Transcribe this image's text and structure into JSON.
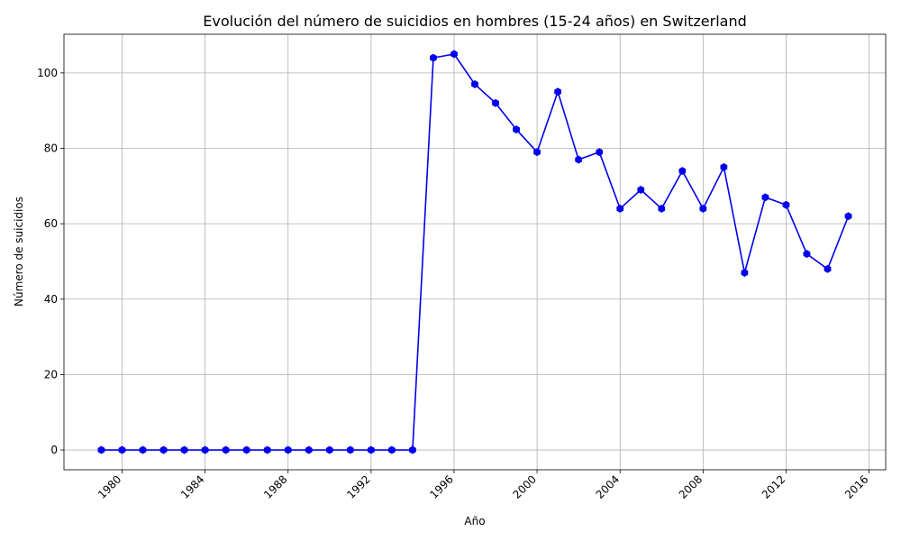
{
  "chart_data": {
    "type": "line",
    "title": "Evolución del número de suicidios en hombres (15-24 años) en Switzerland",
    "xlabel": "Año",
    "ylabel": "Número de suicidios",
    "x": [
      1979,
      1980,
      1981,
      1982,
      1983,
      1984,
      1985,
      1986,
      1987,
      1988,
      1989,
      1990,
      1991,
      1992,
      1993,
      1994,
      1995,
      1996,
      1997,
      1998,
      1999,
      2000,
      2001,
      2002,
      2003,
      2004,
      2005,
      2006,
      2007,
      2008,
      2009,
      2010,
      2011,
      2012,
      2013,
      2014,
      2015
    ],
    "series": [
      {
        "values": [
          0,
          0,
          0,
          0,
          0,
          0,
          0,
          0,
          0,
          0,
          0,
          0,
          0,
          0,
          0,
          0,
          104,
          105,
          97,
          92,
          85,
          79,
          95,
          77,
          79,
          64,
          69,
          64,
          74,
          64,
          75,
          47,
          67,
          65,
          52,
          48,
          62
        ],
        "color": "#0000ee",
        "marker": "hexagon"
      }
    ],
    "xlim": [
      1977.2,
      2016.8
    ],
    "ylim": [
      -5.25,
      110.25
    ],
    "xticks": [
      "1980",
      "1984",
      "1988",
      "1992",
      "1996",
      "2000",
      "2004",
      "2008",
      "2012",
      "2016"
    ],
    "yticks": [
      "0",
      "20",
      "40",
      "60",
      "80",
      "100"
    ],
    "grid": true
  }
}
